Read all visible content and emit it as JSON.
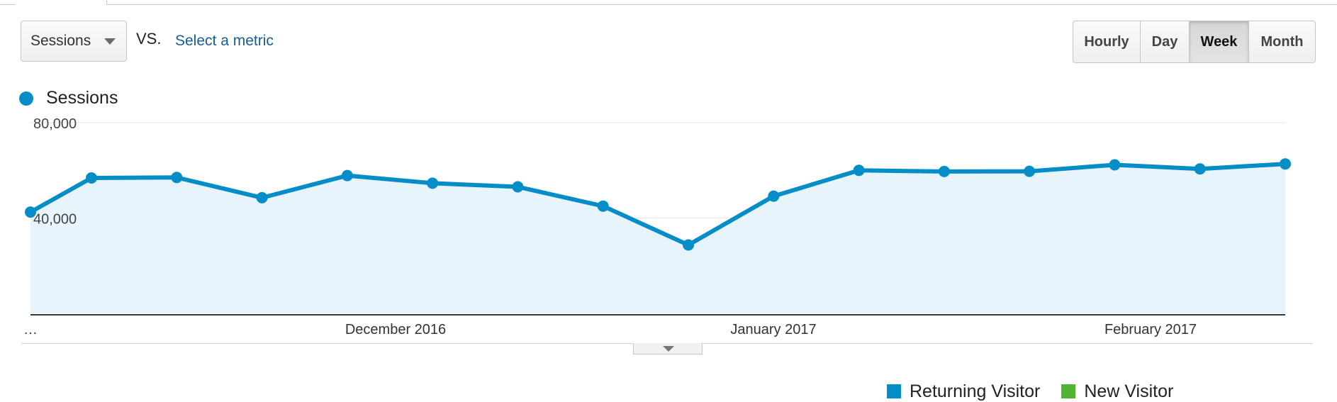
{
  "controls": {
    "metric_select": "Sessions",
    "vs_label": "VS.",
    "select_metric_link": "Select a metric",
    "granularity": [
      "Hourly",
      "Day",
      "Week",
      "Month"
    ],
    "granularity_active": "Week"
  },
  "legend": {
    "label": "Sessions",
    "color": "#058dc7"
  },
  "chart_data": {
    "type": "area",
    "grid": true,
    "legend_position": "top-left",
    "ylim": [
      0,
      80000
    ],
    "y_ticks": [
      {
        "value": 80000,
        "label": "80,000"
      },
      {
        "value": 40000,
        "label": "40,000"
      }
    ],
    "x_labels": [
      "…",
      "December 2016",
      "January 2017",
      "February 2017"
    ],
    "series": [
      {
        "name": "Sessions",
        "color": "#058dc7",
        "fill": "#e8f4fb",
        "values": [
          42500,
          56800,
          57000,
          48500,
          57800,
          54600,
          53100,
          45000,
          28700,
          49200,
          60000,
          59500,
          59600,
          62300,
          60600,
          62700
        ]
      }
    ]
  },
  "bottom_legend": {
    "items": [
      {
        "label": "Returning Visitor",
        "color": "#058dc7"
      },
      {
        "label": "New Visitor",
        "color": "#50b432"
      }
    ]
  }
}
